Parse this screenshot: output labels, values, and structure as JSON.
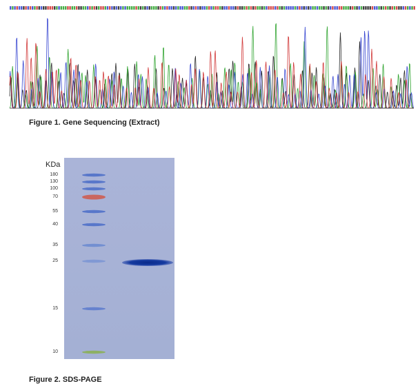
{
  "figures": [
    {
      "caption": "Figure 1. Gene Sequencing (Extract)"
    },
    {
      "caption": "Figure 2. SDS-PAGE",
      "unit": "KDa",
      "markers": [
        "180",
        "130",
        "100",
        "70",
        "55",
        "40",
        "35",
        "25",
        "15",
        "10"
      ]
    }
  ]
}
